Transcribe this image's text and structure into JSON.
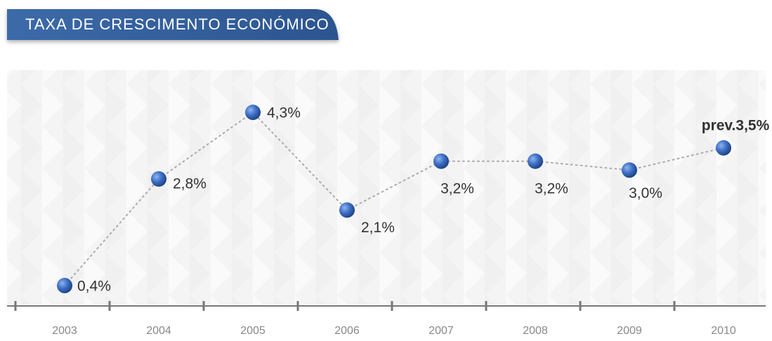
{
  "chart_data": {
    "type": "line",
    "title": "TAXA DE CRESCIMENTO ECONÓMICO",
    "categories": [
      "2003",
      "2004",
      "2005",
      "2006",
      "2007",
      "2008",
      "2009",
      "2010"
    ],
    "values": [
      0.4,
      2.8,
      4.3,
      2.1,
      3.2,
      3.2,
      3.0,
      3.5
    ],
    "value_labels": [
      "0,4%",
      "2,8%",
      "4,3%",
      "2,1%",
      "3,2%",
      "3,2%",
      "3,0%",
      "prev.3,5%"
    ],
    "color": "#2f5da8"
  }
}
